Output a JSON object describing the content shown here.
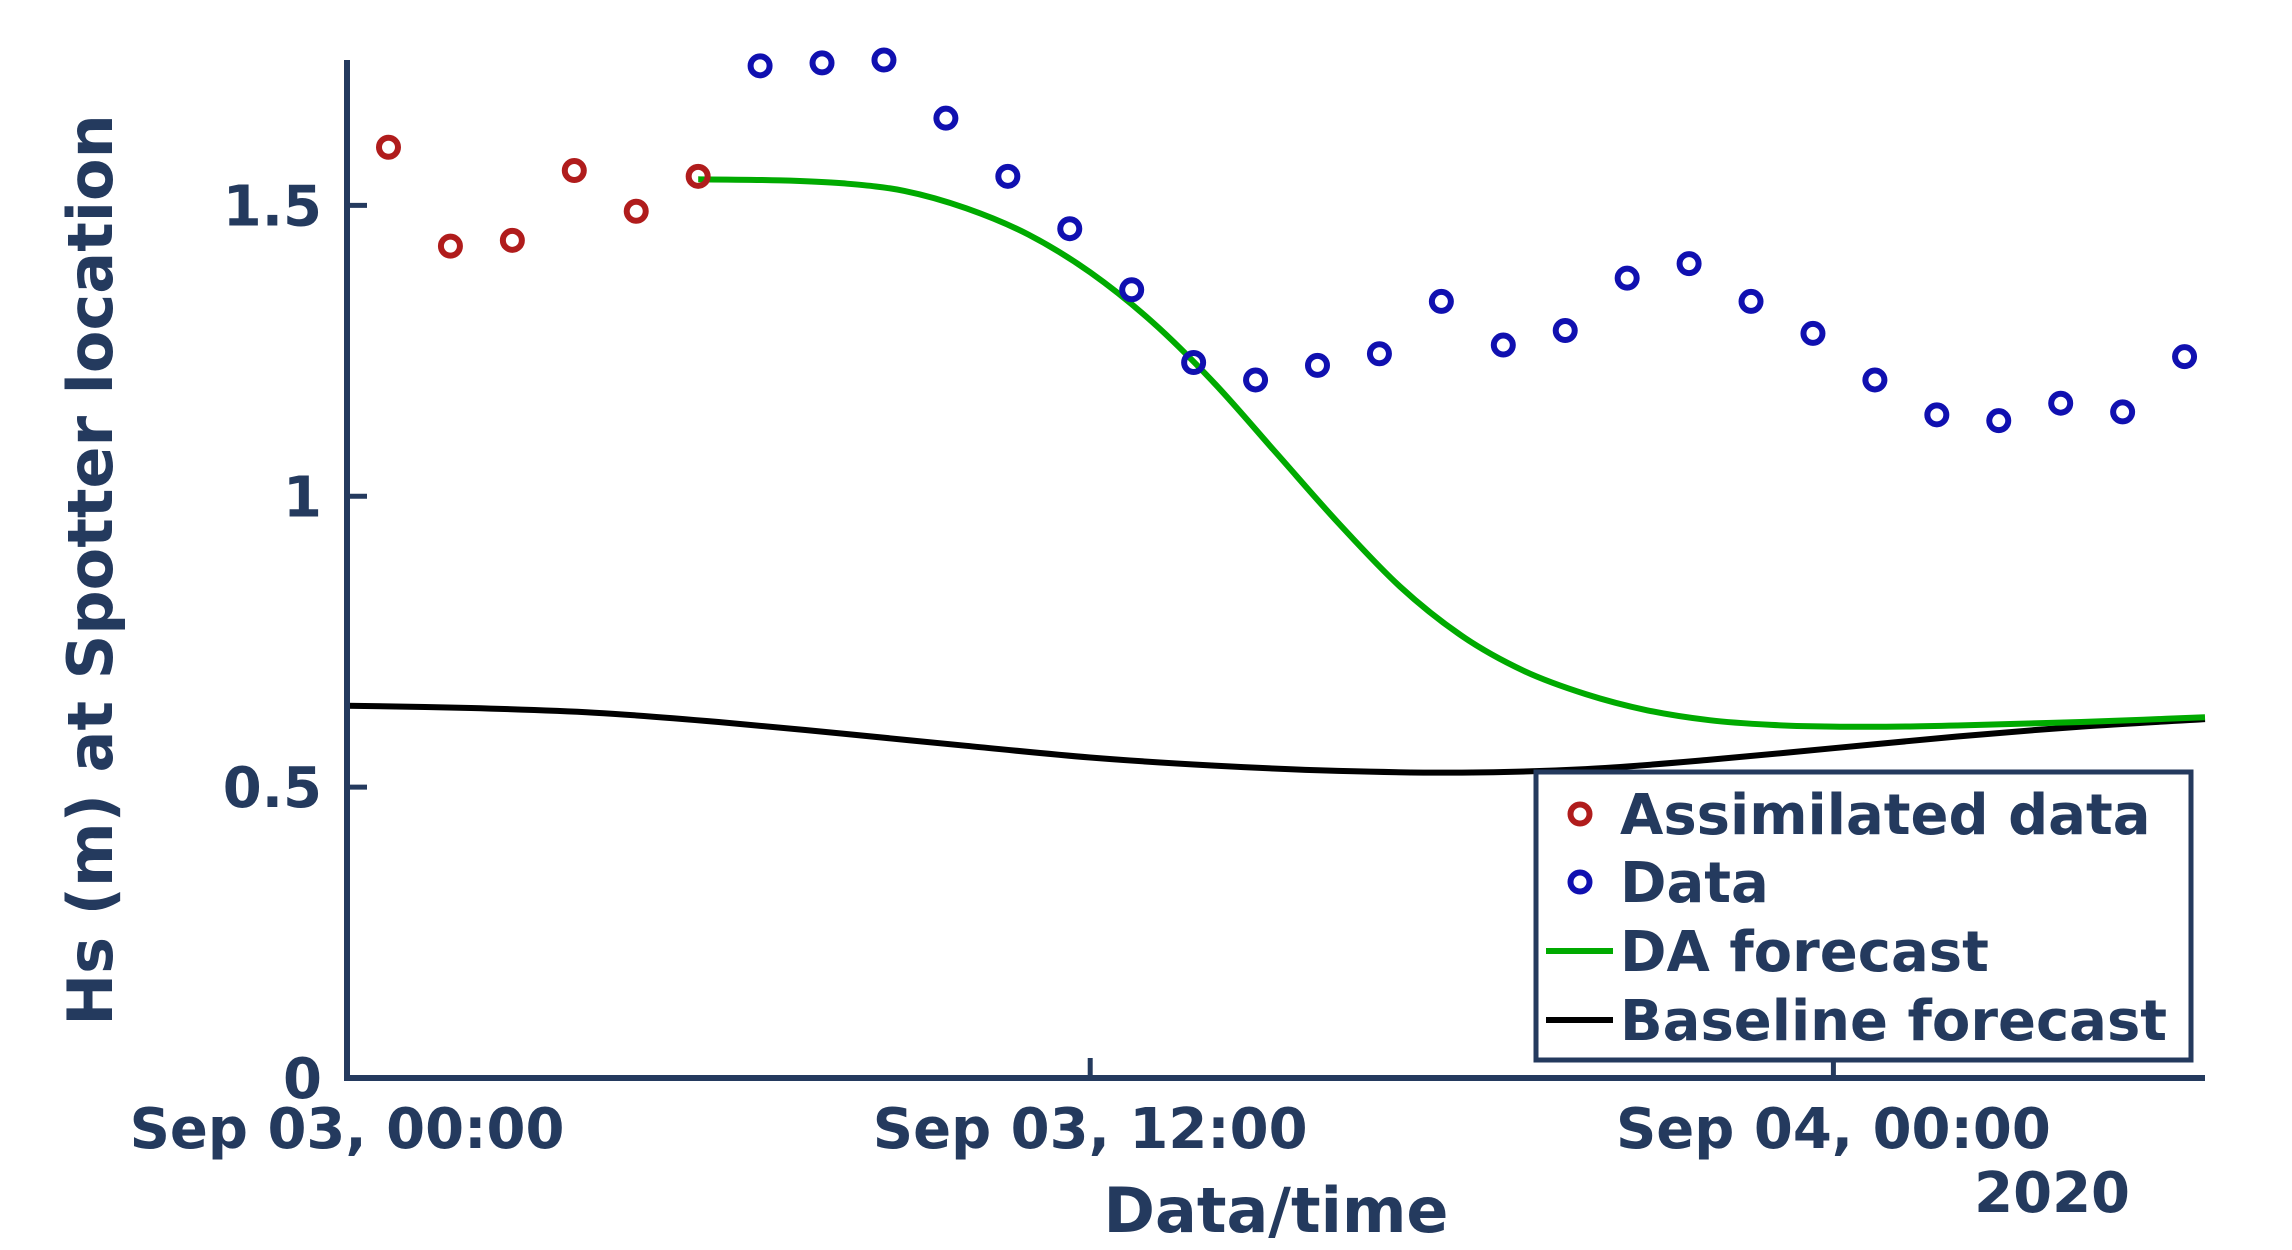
{
  "chart_data": {
    "type": "line",
    "title": "",
    "xlabel": "Data/time",
    "ylabel": "Hs (m) at Spotter location",
    "year_label": "2020",
    "xlim": [
      0,
      30
    ],
    "ylim": [
      0,
      1.75
    ],
    "x_ticks": [
      {
        "value": 0,
        "label": "Sep 03, 00:00"
      },
      {
        "value": 12,
        "label": "Sep 03, 12:00"
      },
      {
        "value": 24,
        "label": "Sep 04, 00:00"
      }
    ],
    "y_ticks": [
      {
        "value": 0,
        "label": "0"
      },
      {
        "value": 0.5,
        "label": "0.5"
      },
      {
        "value": 1,
        "label": "1"
      },
      {
        "value": 1.5,
        "label": "1.5"
      }
    ],
    "x_unit": "hours since Sep 03, 00:00",
    "series": [
      {
        "name": "Assimilated data",
        "kind": "scatter",
        "color": "#b01c1c",
        "x": [
          0.67,
          1.67,
          2.67,
          3.67,
          4.67,
          5.67
        ],
        "y": [
          1.6,
          1.43,
          1.44,
          1.56,
          1.49,
          1.55
        ]
      },
      {
        "name": "Data",
        "kind": "scatter",
        "color": "#1010b0",
        "x": [
          6.67,
          7.67,
          8.67,
          9.67,
          10.67,
          11.67,
          12.67,
          13.67,
          14.67,
          15.67,
          16.67,
          17.67,
          18.67,
          19.67,
          20.67,
          21.67,
          22.67,
          23.67,
          24.67,
          25.67,
          26.67,
          27.67,
          28.67,
          29.67
        ],
        "y": [
          1.74,
          1.745,
          1.75,
          1.65,
          1.55,
          1.46,
          1.355,
          1.23,
          1.2,
          1.225,
          1.245,
          1.335,
          1.26,
          1.285,
          1.375,
          1.4,
          1.335,
          1.28,
          1.2,
          1.14,
          1.13,
          1.16,
          1.145,
          1.24
        ]
      },
      {
        "name": "DA forecast",
        "kind": "line",
        "color": "#00aa00",
        "x": [
          5.67,
          7,
          8,
          9,
          10,
          11,
          12,
          13,
          14,
          15,
          16,
          17,
          18,
          19,
          20,
          21,
          22,
          23,
          24,
          25,
          26,
          27,
          28,
          29,
          30
        ],
        "y": [
          1.545,
          1.543,
          1.538,
          1.525,
          1.495,
          1.45,
          1.385,
          1.3,
          1.195,
          1.075,
          0.955,
          0.845,
          0.76,
          0.7,
          0.66,
          0.632,
          0.615,
          0.607,
          0.604,
          0.604,
          0.606,
          0.609,
          0.612,
          0.616,
          0.62
        ]
      },
      {
        "name": "Baseline forecast",
        "kind": "line",
        "color": "#000000",
        "x": [
          0,
          2,
          4,
          6,
          8,
          10,
          12,
          14,
          16,
          18,
          20,
          22,
          24,
          26,
          28,
          30
        ],
        "y": [
          0.64,
          0.636,
          0.628,
          0.612,
          0.592,
          0.571,
          0.551,
          0.537,
          0.528,
          0.525,
          0.531,
          0.547,
          0.567,
          0.587,
          0.604,
          0.617
        ]
      }
    ],
    "legend": {
      "position": "bottom-right",
      "entries": [
        "Assimilated data",
        "Data",
        "DA forecast",
        "Baseline forecast"
      ]
    },
    "axis_color": "#243a5e"
  }
}
